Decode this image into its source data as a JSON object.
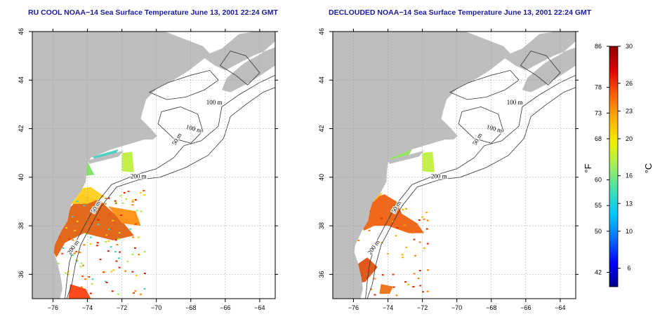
{
  "panels": [
    {
      "id": "left",
      "title": "RU COOL NOAA−14 Sea Surface Temperature June 13, 2001 22:24 GMT",
      "variant": "cool"
    },
    {
      "id": "right",
      "title": "DECLOUDED NOAA−14 Sea Surface Temperature June 13, 2001 22:24 GMT",
      "variant": "declouded"
    }
  ],
  "map": {
    "lon_ticks": [
      "−76",
      "−74",
      "−72",
      "−70",
      "−68",
      "−66",
      "−64"
    ],
    "lon_values": [
      -76,
      -74,
      -72,
      -70,
      -68,
      -66,
      -64
    ],
    "lat_ticks": [
      "36",
      "38",
      "40",
      "42",
      "44",
      "46"
    ],
    "lat_values": [
      36,
      38,
      40,
      42,
      44,
      46
    ],
    "lon_range": [
      -77.2,
      -63.1
    ],
    "lat_range": [
      35.0,
      46.0
    ],
    "contour_labels": [
      "100 m",
      "100 m",
      "50 m",
      "200 m",
      "50 m",
      "200 m"
    ],
    "land_color": "#bebebe",
    "ocean_color": "#ffffff",
    "grid": true
  },
  "colorbar": {
    "fahrenheit_ticks": [
      "86",
      "78",
      "73",
      "68",
      "60",
      "55",
      "50",
      "42"
    ],
    "celsius_ticks": [
      "30",
      "26",
      "23",
      "20",
      "16",
      "13",
      "10",
      "6"
    ],
    "fahrenheit_label": "°F",
    "celsius_label": "°C",
    "range_c": [
      4,
      30
    ],
    "colors": [
      "#00008b",
      "#0000ff",
      "#0070ff",
      "#00c8ff",
      "#40e0b0",
      "#a0f060",
      "#f0f000",
      "#ffb000",
      "#ff6000",
      "#e00000",
      "#8b0000"
    ]
  }
}
